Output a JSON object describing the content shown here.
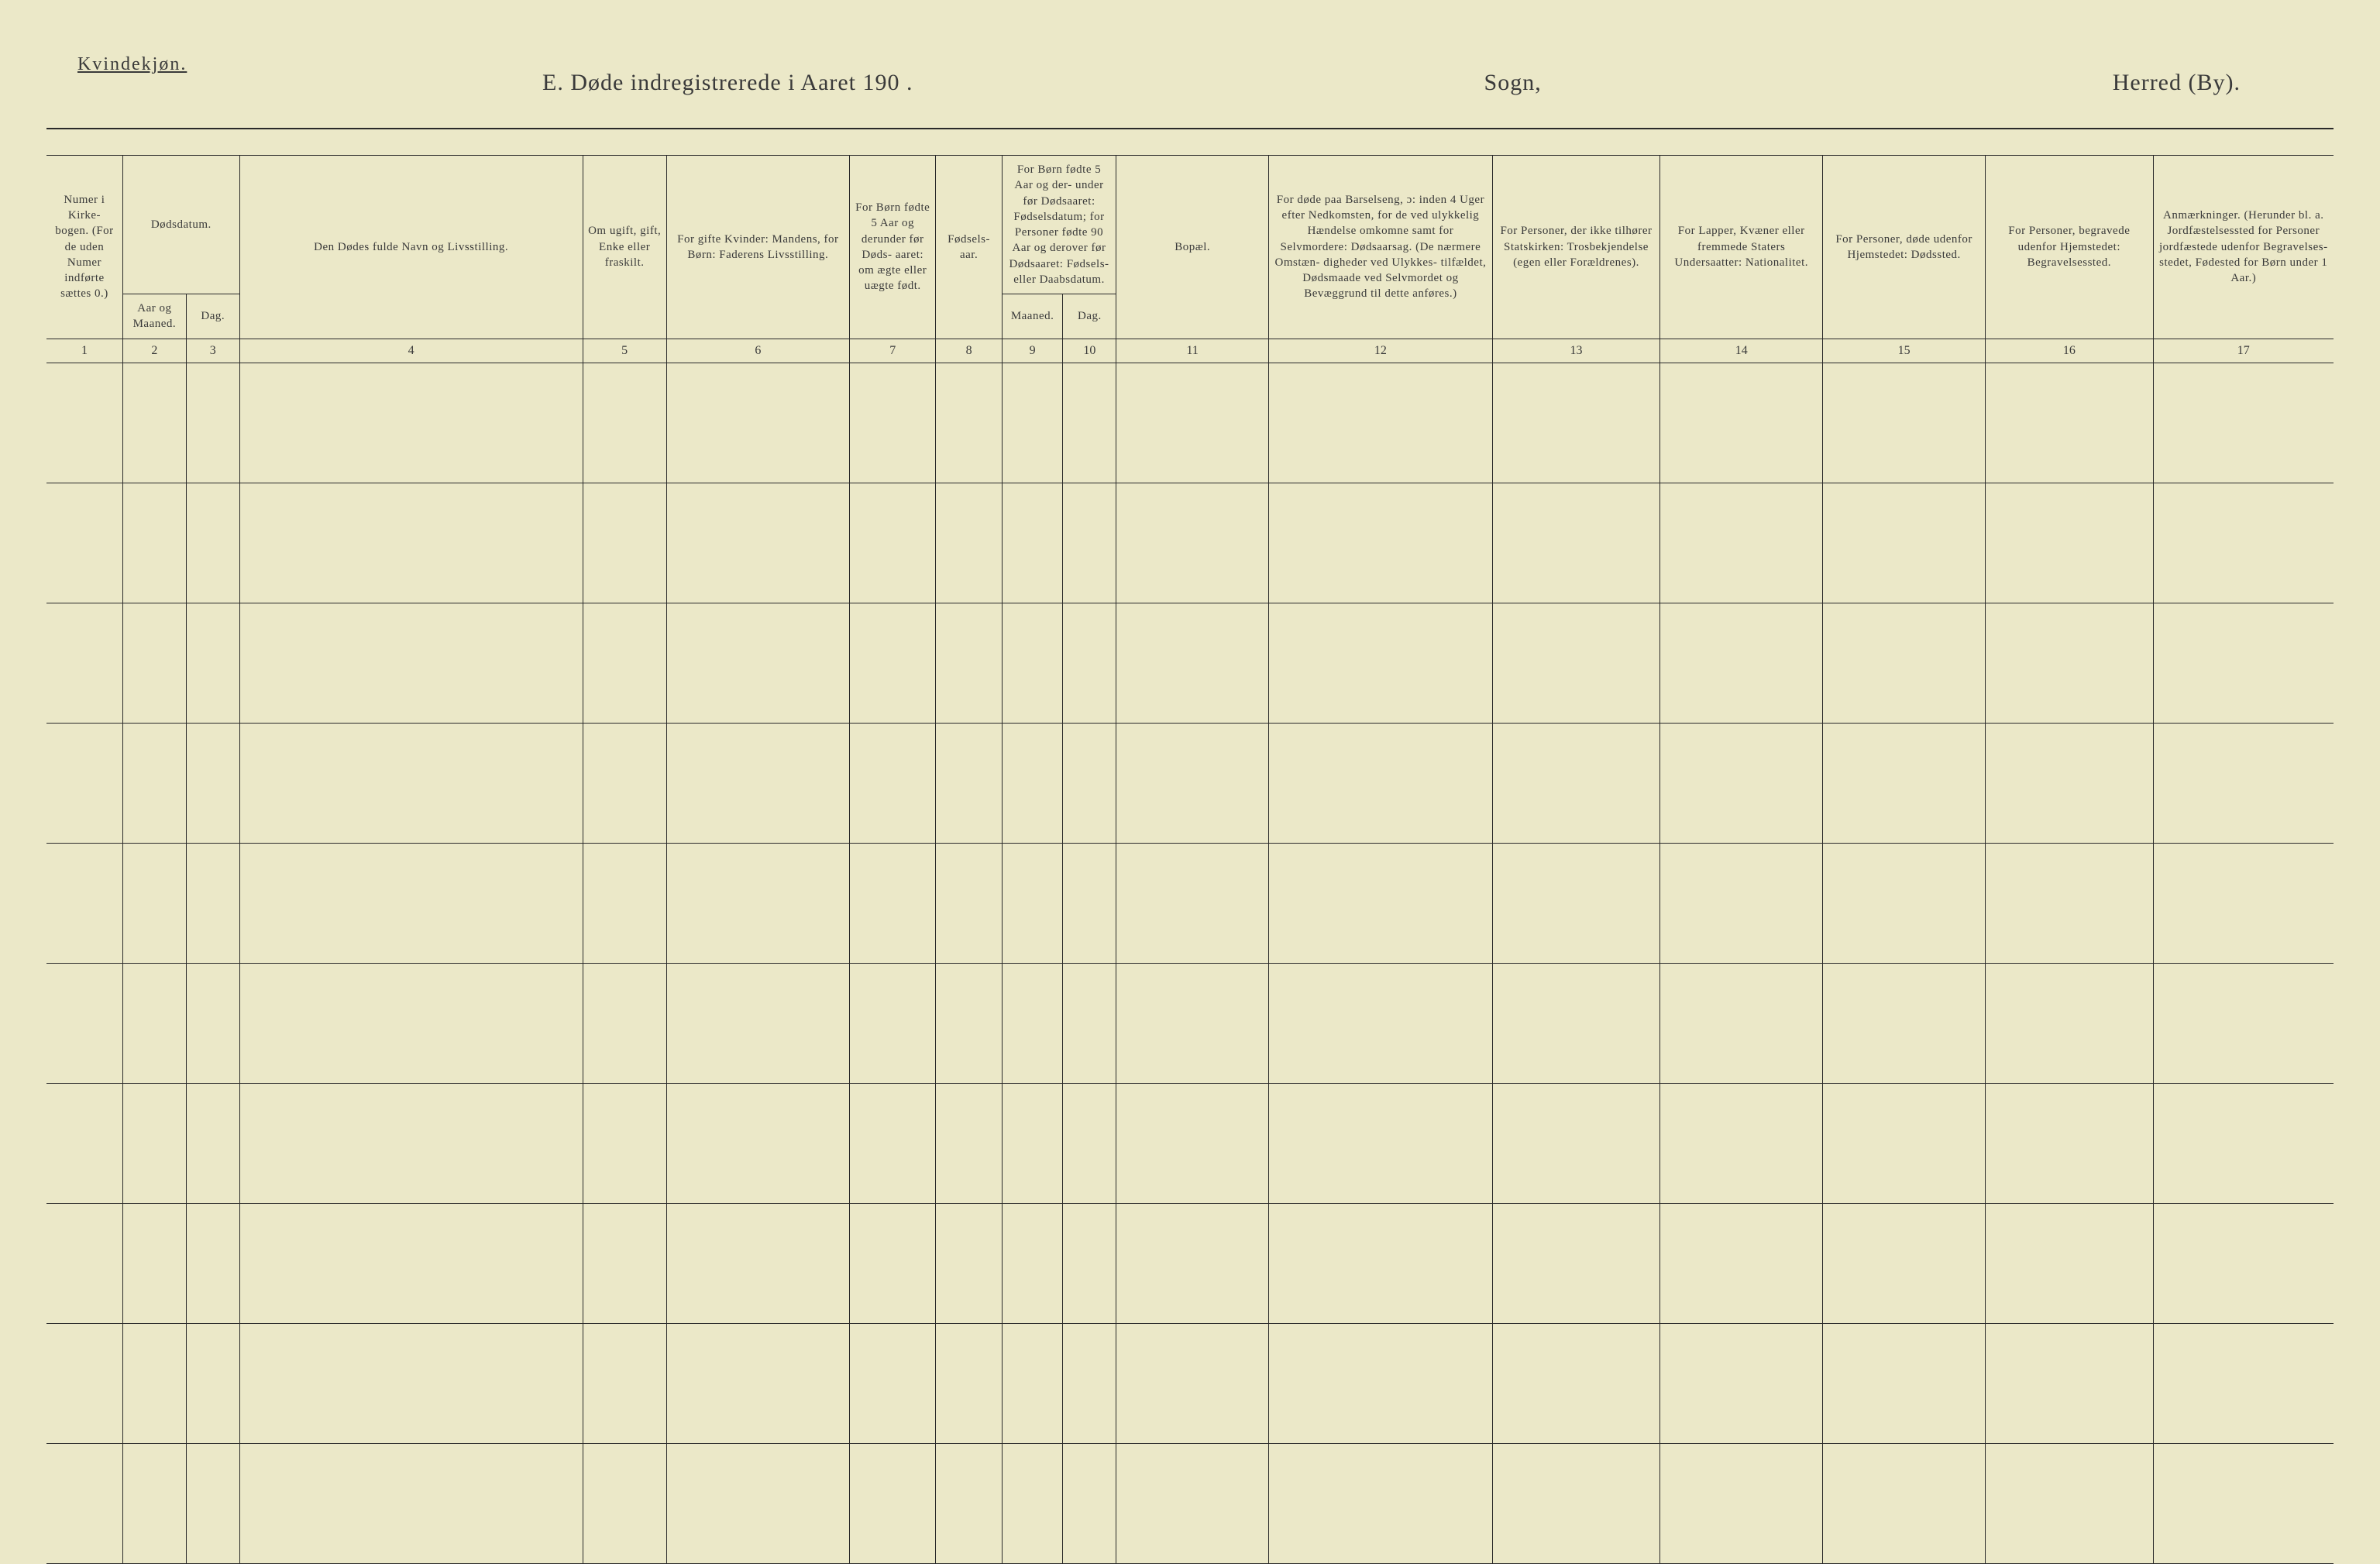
{
  "page": {
    "gender_label": "Kvindekjøn.",
    "title_main": "E.  Døde indregistrerede i Aaret 190   .",
    "title_sogn": "Sogn,",
    "title_herred": "Herred (By).",
    "background_color": "#ebe8c8",
    "rule_color": "#2a2a2a",
    "text_color": "#3a3a3a",
    "font_family": "Times New Roman",
    "blank_row_count": 10,
    "header_font_size_pt": 11,
    "title_font_size_pt": 22
  },
  "columns": {
    "col_widths_pct": [
      3.0,
      2.5,
      2.1,
      13.5,
      3.3,
      7.2,
      3.4,
      2.6,
      2.4,
      2.1,
      6.0,
      8.8,
      6.6,
      6.4,
      6.4,
      6.6,
      7.1
    ],
    "numbers": [
      "1",
      "2",
      "3",
      "4",
      "5",
      "6",
      "7",
      "8",
      "9",
      "10",
      "11",
      "12",
      "13",
      "14",
      "15",
      "16",
      "17"
    ],
    "h1": {
      "text": "Numer i Kirke- bogen. (For de uden Numer indførte sættes 0.)"
    },
    "h2_group": {
      "text": "Dødsdatum."
    },
    "h2a": {
      "text": "Aar og Maaned."
    },
    "h2b": {
      "text": "Dag."
    },
    "h4": {
      "text": "Den Dødes fulde Navn og Livsstilling."
    },
    "h5": {
      "text": "Om ugift, gift, Enke eller fraskilt."
    },
    "h6": {
      "text": "For gifte Kvinder: Mandens, for Børn: Faderens Livsstilling."
    },
    "h7": {
      "text": "For Børn fødte 5 Aar og derunder før Døds- aaret: om ægte eller uægte født."
    },
    "h8": {
      "text": "Fødsels- aar."
    },
    "h9_group": {
      "text": "For Børn fødte 5 Aar og der- under før Dødsaaret: Fødselsdatum; for Personer fødte 90 Aar og derover før Dødsaaret: Fødsels- eller Daabsdatum."
    },
    "h9a": {
      "text": "Maaned."
    },
    "h9b": {
      "text": "Dag."
    },
    "h11": {
      "text": "Bopæl."
    },
    "h12": {
      "text": "For døde paa Barselseng, ɔ: inden 4 Uger efter Nedkomsten, for de ved ulykkelig Hændelse omkomne samt for Selvmordere: Dødsaarsag. (De nærmere Omstæn- digheder ved Ulykkes- tilfældet, Dødsmaade ved Selvmordet og Bevæggrund til dette anføres.)"
    },
    "h13": {
      "text": "For Personer, der ikke tilhører Statskirken: Trosbekjendelse (egen eller Forældrenes)."
    },
    "h14": {
      "text": "For Lapper, Kvæner eller fremmede Staters Undersaatter: Nationalitet."
    },
    "h15": {
      "text": "For Personer, døde udenfor Hjemstedet: Dødssted."
    },
    "h16": {
      "text": "For Personer, begravede udenfor Hjemstedet: Begravelsessted."
    },
    "h17": {
      "text": "Anmærkninger. (Herunder bl. a. Jordfæstelsessted for Personer jordfæstede udenfor Begravelses- stedet, Fødested for Børn under 1 Aar.)"
    }
  }
}
